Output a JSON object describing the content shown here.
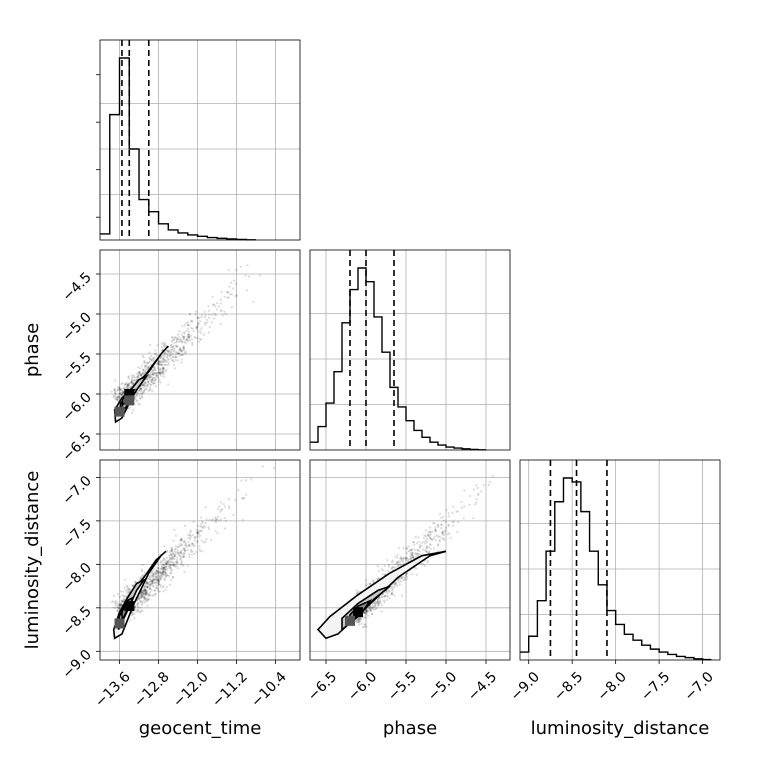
{
  "chart_data": {
    "type": "corner",
    "parameters": [
      "geocent_time",
      "phase",
      "luminosity_distance"
    ],
    "axis_labels": {
      "geocent_time": "geocent_time",
      "phase": "phase",
      "luminosity_distance": "luminosity_distance"
    },
    "ranges": {
      "geocent_time": [
        -14.0,
        -9.9
      ],
      "phase": [
        -6.7,
        -4.2
      ],
      "luminosity_distance": [
        -9.1,
        -6.8
      ]
    },
    "ticks": {
      "geocent_time": [
        -13.6,
        -12.8,
        -12.0,
        -11.2,
        -10.4
      ],
      "phase": [
        -6.5,
        -6.0,
        -5.5,
        -5.0,
        -4.5
      ],
      "luminosity_distance": [
        -9.0,
        -8.5,
        -8.0,
        -7.5,
        -7.0
      ]
    },
    "tick_labels": {
      "geocent_time": [
        "−13.6",
        "−12.8",
        "−12.0",
        "−11.2",
        "−10.4"
      ],
      "phase": [
        "−6.5",
        "−6.0",
        "−5.5",
        "−5.0",
        "−4.5"
      ],
      "luminosity_distance": [
        "−9.0",
        "−8.5",
        "−8.0",
        "−7.5",
        "−7.0"
      ]
    },
    "quantiles": {
      "geocent_time": [
        -13.55,
        -13.4,
        -13.0
      ],
      "phase": [
        -6.2,
        -6.0,
        -5.65
      ],
      "luminosity_distance": [
        -8.75,
        -8.45,
        -8.1
      ]
    },
    "histograms": {
      "geocent_time": {
        "edges": [
          -14.0,
          -13.8,
          -13.6,
          -13.4,
          -13.2,
          -13.0,
          -12.8,
          -12.6,
          -12.4,
          -12.2,
          -12.0,
          -11.8,
          -11.6,
          -11.4,
          -11.2,
          -11.0,
          -10.8
        ],
        "counts": [
          0.03,
          0.62,
          0.9,
          0.45,
          0.2,
          0.14,
          0.08,
          0.05,
          0.035,
          0.025,
          0.018,
          0.012,
          0.008,
          0.005,
          0.003,
          0.001
        ]
      },
      "phase": {
        "edges": [
          -6.7,
          -6.6,
          -6.5,
          -6.4,
          -6.3,
          -6.2,
          -6.1,
          -6.0,
          -5.9,
          -5.8,
          -5.7,
          -5.6,
          -5.5,
          -5.4,
          -5.3,
          -5.2,
          -5.1,
          -5.0,
          -4.9,
          -4.8,
          -4.7,
          -4.6,
          -4.5
        ],
        "counts": [
          0.04,
          0.12,
          0.24,
          0.4,
          0.65,
          0.82,
          0.93,
          0.86,
          0.68,
          0.5,
          0.32,
          0.22,
          0.15,
          0.1,
          0.065,
          0.04,
          0.025,
          0.015,
          0.01,
          0.006,
          0.003,
          0.001
        ]
      },
      "luminosity_distance": {
        "edges": [
          -9.1,
          -9.0,
          -8.9,
          -8.8,
          -8.7,
          -8.6,
          -8.5,
          -8.4,
          -8.3,
          -8.2,
          -8.1,
          -8.0,
          -7.9,
          -7.8,
          -7.7,
          -7.6,
          -7.5,
          -7.4,
          -7.3,
          -7.2,
          -7.1,
          -7.0,
          -6.9
        ],
        "counts": [
          0.04,
          0.12,
          0.3,
          0.55,
          0.8,
          0.92,
          0.9,
          0.75,
          0.55,
          0.38,
          0.25,
          0.18,
          0.13,
          0.1,
          0.075,
          0.055,
          0.04,
          0.028,
          0.018,
          0.012,
          0.006,
          0.002
        ]
      }
    },
    "pairs": [
      {
        "x": "geocent_time",
        "y": "phase",
        "slope": 1.0,
        "center": [
          -13.4,
          -6.0
        ],
        "contours": [
          [
            [
              -13.68,
              -6.35
            ],
            [
              -13.55,
              -6.3
            ],
            [
              -13.35,
              -6.05
            ],
            [
              -13.05,
              -5.75
            ],
            [
              -12.75,
              -5.5
            ],
            [
              -12.6,
              -5.4
            ],
            [
              -12.75,
              -5.5
            ],
            [
              -13.0,
              -5.72
            ],
            [
              -13.3,
              -5.9
            ],
            [
              -13.55,
              -6.05
            ],
            [
              -13.7,
              -6.2
            ]
          ],
          [
            [
              -13.6,
              -6.25
            ],
            [
              -13.45,
              -6.15
            ],
            [
              -13.25,
              -5.95
            ],
            [
              -13.05,
              -5.78
            ],
            [
              -13.2,
              -5.82
            ],
            [
              -13.4,
              -5.97
            ],
            [
              -13.58,
              -6.12
            ]
          ],
          [
            [
              -13.55,
              -6.15
            ],
            [
              -13.42,
              -6.05
            ],
            [
              -13.3,
              -5.95
            ],
            [
              -13.42,
              -5.97
            ],
            [
              -13.53,
              -6.06
            ]
          ]
        ],
        "dense_cells": [
          [
            -13.4,
            -6.0
          ],
          [
            -13.4,
            -6.08
          ],
          [
            -13.6,
            -6.22
          ]
        ]
      },
      {
        "x": "geocent_time",
        "y": "luminosity_distance",
        "slope": 1.0,
        "center": [
          -13.4,
          -8.45
        ],
        "contours": [
          [
            [
              -13.7,
              -8.85
            ],
            [
              -13.55,
              -8.8
            ],
            [
              -13.3,
              -8.45
            ],
            [
              -13.0,
              -8.1
            ],
            [
              -12.75,
              -7.9
            ],
            [
              -12.65,
              -7.85
            ],
            [
              -12.85,
              -7.95
            ],
            [
              -13.1,
              -8.15
            ],
            [
              -13.4,
              -8.35
            ],
            [
              -13.6,
              -8.55
            ],
            [
              -13.72,
              -8.75
            ]
          ],
          [
            [
              -13.62,
              -8.75
            ],
            [
              -13.45,
              -8.55
            ],
            [
              -13.25,
              -8.3
            ],
            [
              -13.1,
              -8.18
            ],
            [
              -13.25,
              -8.22
            ],
            [
              -13.45,
              -8.4
            ],
            [
              -13.6,
              -8.6
            ]
          ],
          [
            [
              -13.55,
              -8.65
            ],
            [
              -13.42,
              -8.5
            ],
            [
              -13.32,
              -8.38
            ],
            [
              -13.45,
              -8.42
            ],
            [
              -13.55,
              -8.55
            ]
          ]
        ],
        "dense_cells": [
          [
            -13.4,
            -8.48
          ],
          [
            -13.6,
            -8.68
          ]
        ]
      },
      {
        "x": "phase",
        "y": "luminosity_distance",
        "slope": 1.0,
        "center": [
          -6.05,
          -8.5
        ],
        "contours": [
          [
            [
              -6.5,
              -8.85
            ],
            [
              -6.35,
              -8.8
            ],
            [
              -6.0,
              -8.5
            ],
            [
              -5.6,
              -8.15
            ],
            [
              -5.2,
              -7.9
            ],
            [
              -5.0,
              -7.85
            ],
            [
              -5.3,
              -7.9
            ],
            [
              -5.7,
              -8.1
            ],
            [
              -6.1,
              -8.35
            ],
            [
              -6.45,
              -8.6
            ],
            [
              -6.6,
              -8.75
            ]
          ],
          [
            [
              -6.3,
              -8.75
            ],
            [
              -6.1,
              -8.6
            ],
            [
              -5.9,
              -8.4
            ],
            [
              -5.7,
              -8.25
            ],
            [
              -5.85,
              -8.3
            ],
            [
              -6.1,
              -8.45
            ],
            [
              -6.3,
              -8.62
            ]
          ],
          [
            [
              -6.2,
              -8.65
            ],
            [
              -6.05,
              -8.55
            ],
            [
              -5.95,
              -8.42
            ],
            [
              -6.1,
              -8.48
            ],
            [
              -6.2,
              -8.58
            ]
          ]
        ],
        "dense_cells": [
          [
            -6.1,
            -8.55
          ],
          [
            -6.2,
            -8.65
          ]
        ]
      }
    ]
  }
}
